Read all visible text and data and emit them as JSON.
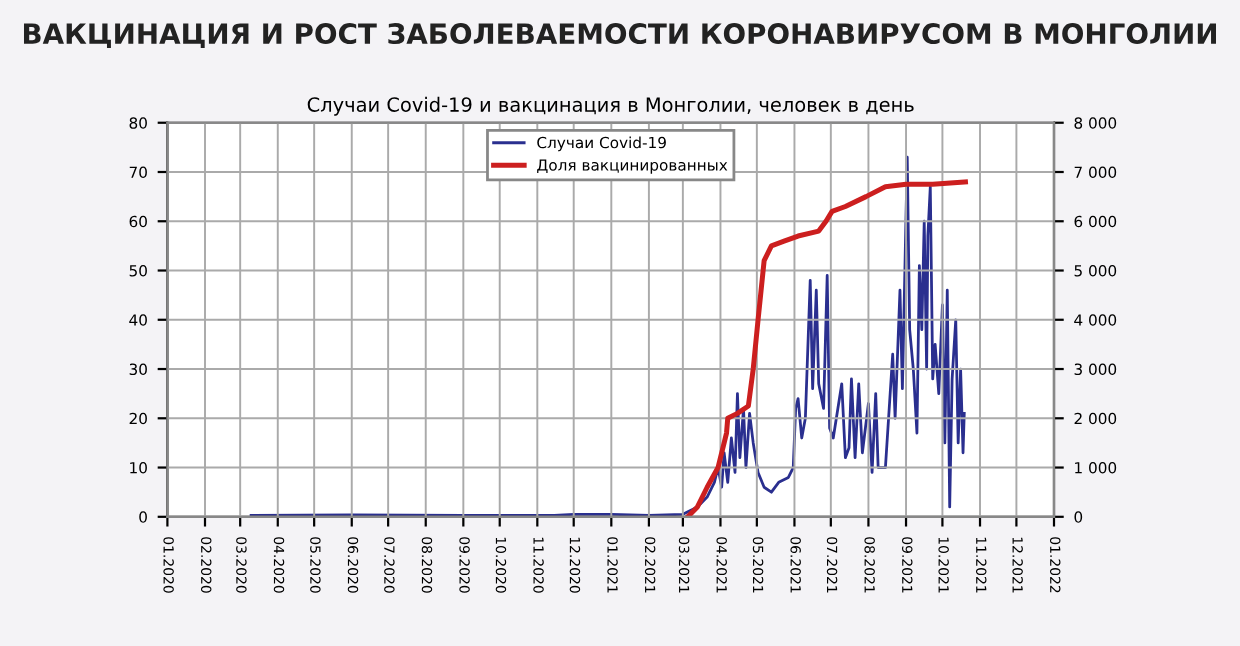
{
  "chart_data": {
    "type": "line",
    "title": "ВАКЦИНАЦИЯ И РОСТ ЗАБОЛЕВАЕМОСТИ КОРОНАВИРУСОМ В МОНГОЛИИ",
    "subtitle": "Случаи Covid-19 и вакцинация в Монголии, человек в день",
    "xlim": [
      "2020-01-01",
      "2022-01-01"
    ],
    "xticks": [
      {
        "value": "2020-01-01",
        "label": "01.2020"
      },
      {
        "value": "2020-02-01",
        "label": "02.2020"
      },
      {
        "value": "2020-03-01",
        "label": "03.2020"
      },
      {
        "value": "2020-04-01",
        "label": "04.2020"
      },
      {
        "value": "2020-05-01",
        "label": "05.2020"
      },
      {
        "value": "2020-06-01",
        "label": "06.2020"
      },
      {
        "value": "2020-07-01",
        "label": "07.2020"
      },
      {
        "value": "2020-08-01",
        "label": "08.2020"
      },
      {
        "value": "2020-09-01",
        "label": "09.2020"
      },
      {
        "value": "2020-10-01",
        "label": "10.2020"
      },
      {
        "value": "2020-11-01",
        "label": "11.2020"
      },
      {
        "value": "2020-12-01",
        "label": "12.2020"
      },
      {
        "value": "2021-01-01",
        "label": "01.2021"
      },
      {
        "value": "2021-02-01",
        "label": "02.2021"
      },
      {
        "value": "2021-03-01",
        "label": "03.2021"
      },
      {
        "value": "2021-04-01",
        "label": "04.2021"
      },
      {
        "value": "2021-05-01",
        "label": "05.2021"
      },
      {
        "value": "2021-06-01",
        "label": "06.2021"
      },
      {
        "value": "2021-07-01",
        "label": "07.2021"
      },
      {
        "value": "2021-08-01",
        "label": "08.2021"
      },
      {
        "value": "2021-09-01",
        "label": "09.2021"
      },
      {
        "value": "2021-10-01",
        "label": "10.2021"
      },
      {
        "value": "2021-11-01",
        "label": "11.2021"
      },
      {
        "value": "2021-12-01",
        "label": "12.2021"
      },
      {
        "value": "2022-01-01",
        "label": "01.2022"
      }
    ],
    "ylim": [
      0,
      80
    ],
    "yticks": [
      0,
      10,
      20,
      30,
      40,
      50,
      60,
      70,
      80
    ],
    "y2lim": [
      0,
      8000
    ],
    "y2ticks": [
      0,
      {
        "value": 1000,
        "label": "1 000"
      },
      {
        "value": 2000,
        "label": "2 000"
      },
      {
        "value": 3000,
        "label": "3 000"
      },
      {
        "value": 4000,
        "label": "4 000"
      },
      {
        "value": 5000,
        "label": "5 000"
      },
      {
        "value": 6000,
        "label": "6 000"
      },
      {
        "value": 7000,
        "label": "7 000"
      },
      {
        "value": 8000,
        "label": "8 000"
      }
    ],
    "grid": true,
    "legend": "top",
    "marker": "none",
    "line_style": "solid",
    "series": [
      {
        "name": "Случаи Covid-19",
        "color": "#2a2f8f",
        "axis": "y2",
        "x": [
          "2020-03-10",
          "2020-06-01",
          "2020-09-01",
          "2020-11-15",
          "2020-12-01",
          "2021-01-01",
          "2021-02-01",
          "2021-03-01",
          "2021-03-13",
          "2021-03-21",
          "2021-03-27",
          "2021-03-30",
          "2021-04-02",
          "2021-04-04",
          "2021-04-07",
          "2021-04-10",
          "2021-04-13",
          "2021-04-15",
          "2021-04-17",
          "2021-04-20",
          "2021-04-22",
          "2021-04-25",
          "2021-04-28",
          "2021-05-02",
          "2021-05-07",
          "2021-05-13",
          "2021-05-19",
          "2021-05-27",
          "2021-05-31",
          "2021-06-02",
          "2021-06-04",
          "2021-06-07",
          "2021-06-10",
          "2021-06-14",
          "2021-06-16",
          "2021-06-19",
          "2021-06-21",
          "2021-06-25",
          "2021-06-28",
          "2021-06-30",
          "2021-07-03",
          "2021-07-10",
          "2021-07-13",
          "2021-07-16",
          "2021-07-18",
          "2021-07-21",
          "2021-07-24",
          "2021-07-27",
          "2021-08-01",
          "2021-08-04",
          "2021-08-07",
          "2021-08-09",
          "2021-08-15",
          "2021-08-21",
          "2021-08-23",
          "2021-08-27",
          "2021-08-29",
          "2021-09-02",
          "2021-09-04",
          "2021-09-07",
          "2021-09-10",
          "2021-09-12",
          "2021-09-14",
          "2021-09-16",
          "2021-09-18",
          "2021-09-19",
          "2021-09-21",
          "2021-09-23",
          "2021-09-25",
          "2021-09-28",
          "2021-10-01",
          "2021-10-03",
          "2021-10-05",
          "2021-10-07",
          "2021-10-09",
          "2021-10-12",
          "2021-10-14",
          "2021-10-16",
          "2021-10-18",
          "2021-10-19"
        ],
        "values": [
          30,
          40,
          30,
          30,
          50,
          50,
          30,
          50,
          200,
          400,
          700,
          1000,
          600,
          1300,
          700,
          1600,
          900,
          2500,
          1200,
          2200,
          1000,
          2100,
          1500,
          900,
          600,
          500,
          700,
          800,
          1000,
          2200,
          2400,
          1600,
          2000,
          4800,
          2600,
          4600,
          2700,
          2200,
          4900,
          1800,
          1600,
          2700,
          1200,
          1400,
          2800,
          1200,
          2700,
          1300,
          2300,
          900,
          2500,
          1000,
          1000,
          3300,
          2000,
          4600,
          2600,
          7300,
          3800,
          3000,
          1700,
          5100,
          3800,
          6000,
          3000,
          5700,
          6700,
          2800,
          3500,
          2500,
          4300,
          1500,
          4600,
          200,
          2800,
          4000,
          1500,
          3000,
          1300,
          2100
        ]
      },
      {
        "name": "Доля вакцинированных",
        "color": "#cc1f1f",
        "x": [
          "2021-03-05",
          "2021-03-13",
          "2021-03-21",
          "2021-03-30",
          "2021-04-06",
          "2021-04-07",
          "2021-04-15",
          "2021-04-24",
          "2021-04-28",
          "2021-05-02",
          "2021-05-07",
          "2021-05-13",
          "2021-05-24",
          "2021-06-04",
          "2021-06-21",
          "2021-06-27",
          "2021-07-02",
          "2021-07-13",
          "2021-07-30",
          "2021-08-15",
          "2021-09-01",
          "2021-09-23",
          "2021-10-20"
        ],
        "values": [
          0,
          2,
          6,
          10,
          17,
          20,
          21,
          22.5,
          30,
          40,
          52,
          55,
          56,
          57,
          58,
          60,
          62,
          63,
          65,
          67,
          67.5,
          67.5,
          68
        ]
      }
    ]
  }
}
